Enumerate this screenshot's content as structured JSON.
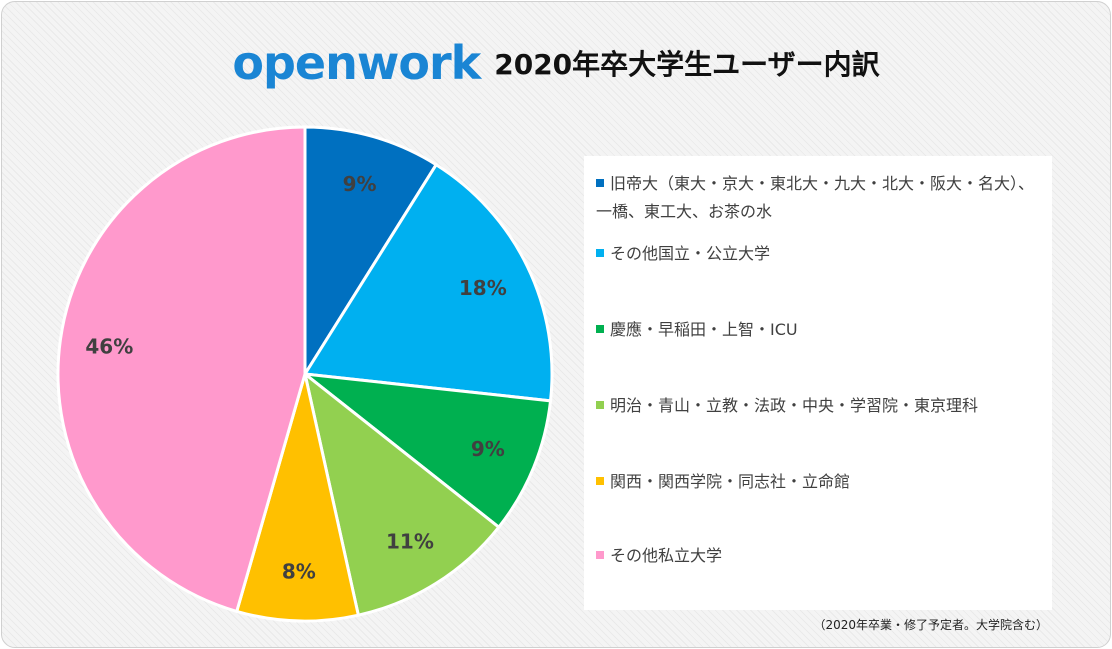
{
  "header": {
    "brand": "openwork",
    "title": "2020年卒大学生ユーザー内訳"
  },
  "colors": {
    "brand": "#1a85d4",
    "slice_border": "#ffffff",
    "label_text": "#404040"
  },
  "chart_data": {
    "type": "pie",
    "start_angle_deg": 0,
    "direction": "clockwise",
    "legend_position": "right",
    "slices": [
      {
        "label": "旧帝大（東大・京大・東北大・九大・北大・阪大・名大）、一橋、東工大、お茶の水",
        "value": 9,
        "display": "9%",
        "color": "#0070c0"
      },
      {
        "label": "その他国立・公立大学",
        "value": 18,
        "display": "18%",
        "color": "#00b0f0"
      },
      {
        "label": "慶應・早稲田・上智・ICU",
        "value": 9,
        "display": "9%",
        "color": "#00b050"
      },
      {
        "label": "明治・青山・立教・法政・中央・学習院・東京理科",
        "value": 11,
        "display": "11%",
        "color": "#92d050"
      },
      {
        "label": "関西・関西学院・同志社・立命館",
        "value": 8,
        "display": "8%",
        "color": "#ffc000"
      },
      {
        "label": "その他私立大学",
        "value": 46,
        "display": "46%",
        "color": "#ff99cc"
      }
    ]
  },
  "footnote": "（2020年卒業・修了予定者。大学院含む）"
}
